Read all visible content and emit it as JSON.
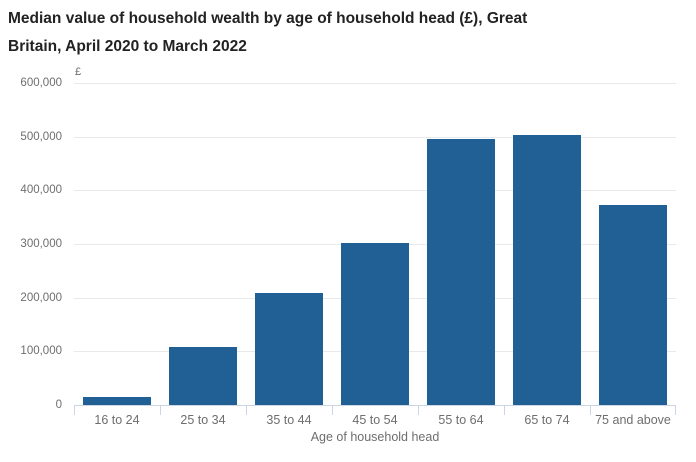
{
  "title": {
    "line1": "Median value of household wealth by age of household head (£), Great",
    "line2": "Britain, April 2020 to March 2022"
  },
  "chart_data": {
    "type": "bar",
    "title": "Median value of household wealth by age of household head (£), Great Britain, April 2020 to March 2022",
    "categories": [
      "16 to 24",
      "25 to 34",
      "35 to 44",
      "45 to 54",
      "55 to 64",
      "65 to 74",
      "75 and above"
    ],
    "values": [
      15000,
      109000,
      209000,
      302000,
      496000,
      504000,
      373000
    ],
    "xlabel": "Age of household head",
    "ylabel": "£",
    "ylim": [
      0,
      600000
    ],
    "yticks": [
      0,
      100000,
      200000,
      300000,
      400000,
      500000,
      600000
    ],
    "ytick_labels": [
      "0",
      "100,000",
      "200,000",
      "300,000",
      "400,000",
      "500,000",
      "600,000"
    ],
    "grid": true,
    "legend": "none",
    "bar_color": "#206095"
  },
  "colors": {
    "bar": "#206095",
    "gridline": "#e9e9e9",
    "axis_line": "#ccd6e2",
    "tick_text": "#6e6e6e",
    "title_text": "#222222"
  }
}
